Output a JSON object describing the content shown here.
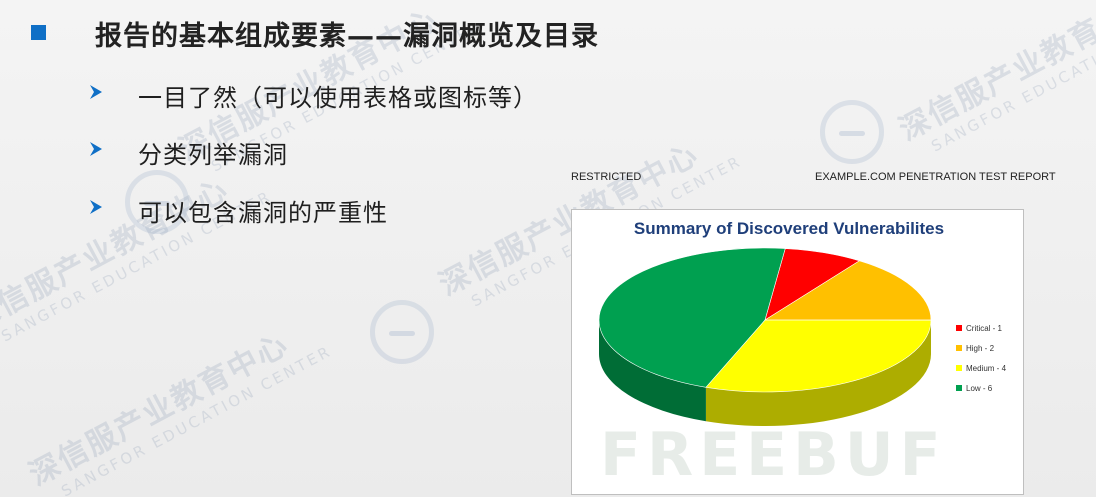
{
  "slide": {
    "title": "报告的基本组成要素——漏洞概览及目录",
    "items": [
      {
        "label": "一目了然（可以使用表格或图标等）"
      },
      {
        "label": "分类列举漏洞"
      },
      {
        "label": "可以包含漏洞的严重性"
      }
    ],
    "accent_color": "#0f6fc6"
  },
  "report": {
    "restricted_label": "RESTRICTED",
    "report_label": "EXAMPLE.COM PENETRATION TEST REPORT"
  },
  "watermark": {
    "cn": "深信服产业教育中心",
    "en": "SANGFOR EDUCATION CENTER",
    "brand": "FREEBUF"
  },
  "chart_data": {
    "type": "pie",
    "title": "Summary of Discovered  Vulnerabilites",
    "legend_position": "right",
    "slices": [
      {
        "label": "Critical - 1",
        "value": 1,
        "color": "#ff0000"
      },
      {
        "label": "High - 2",
        "value": 2,
        "color": "#ffc000"
      },
      {
        "label": "Medium - 4",
        "value": 4,
        "color": "#ffff00"
      },
      {
        "label": "Low - 6",
        "value": 6,
        "color": "#00a050"
      }
    ]
  }
}
